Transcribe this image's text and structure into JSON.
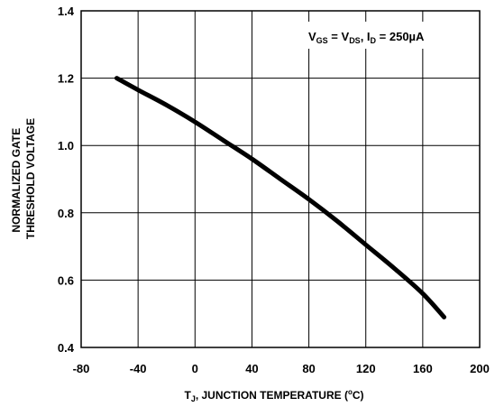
{
  "chart_data": {
    "type": "line",
    "x": [
      -55,
      -40,
      -20,
      0,
      20,
      40,
      60,
      80,
      100,
      120,
      140,
      160,
      175
    ],
    "series": [
      {
        "values": [
          1.2,
          1.165,
          1.12,
          1.07,
          1.015,
          0.96,
          0.9,
          0.84,
          0.775,
          0.705,
          0.635,
          0.56,
          0.49
        ]
      }
    ],
    "xlim": [
      -80,
      200
    ],
    "ylim": [
      0.4,
      1.4
    ],
    "xticks": [
      "-80",
      "-40",
      "0",
      "40",
      "80",
      "120",
      "160",
      "200"
    ],
    "yticks": [
      "0.4",
      "0.6",
      "0.8",
      "1.0",
      "1.2",
      "1.4"
    ],
    "xlabel": {
      "t": "T",
      "t_sub": "J",
      "main": ", JUNCTION TEMPERATURE (",
      "deg": "o",
      "unit": "C)"
    },
    "ylabel": [
      "NORMALIZED GATE",
      "THRESHOLD VOLTAGE"
    ],
    "annotation": {
      "v1": "V",
      "v1_sub": "GS",
      "eq": " = V",
      "v2_sub": "DS",
      "sep": ", I",
      "i_sub": "D",
      "value": " = 250µA"
    },
    "grid": true,
    "line_color": "#000000"
  }
}
